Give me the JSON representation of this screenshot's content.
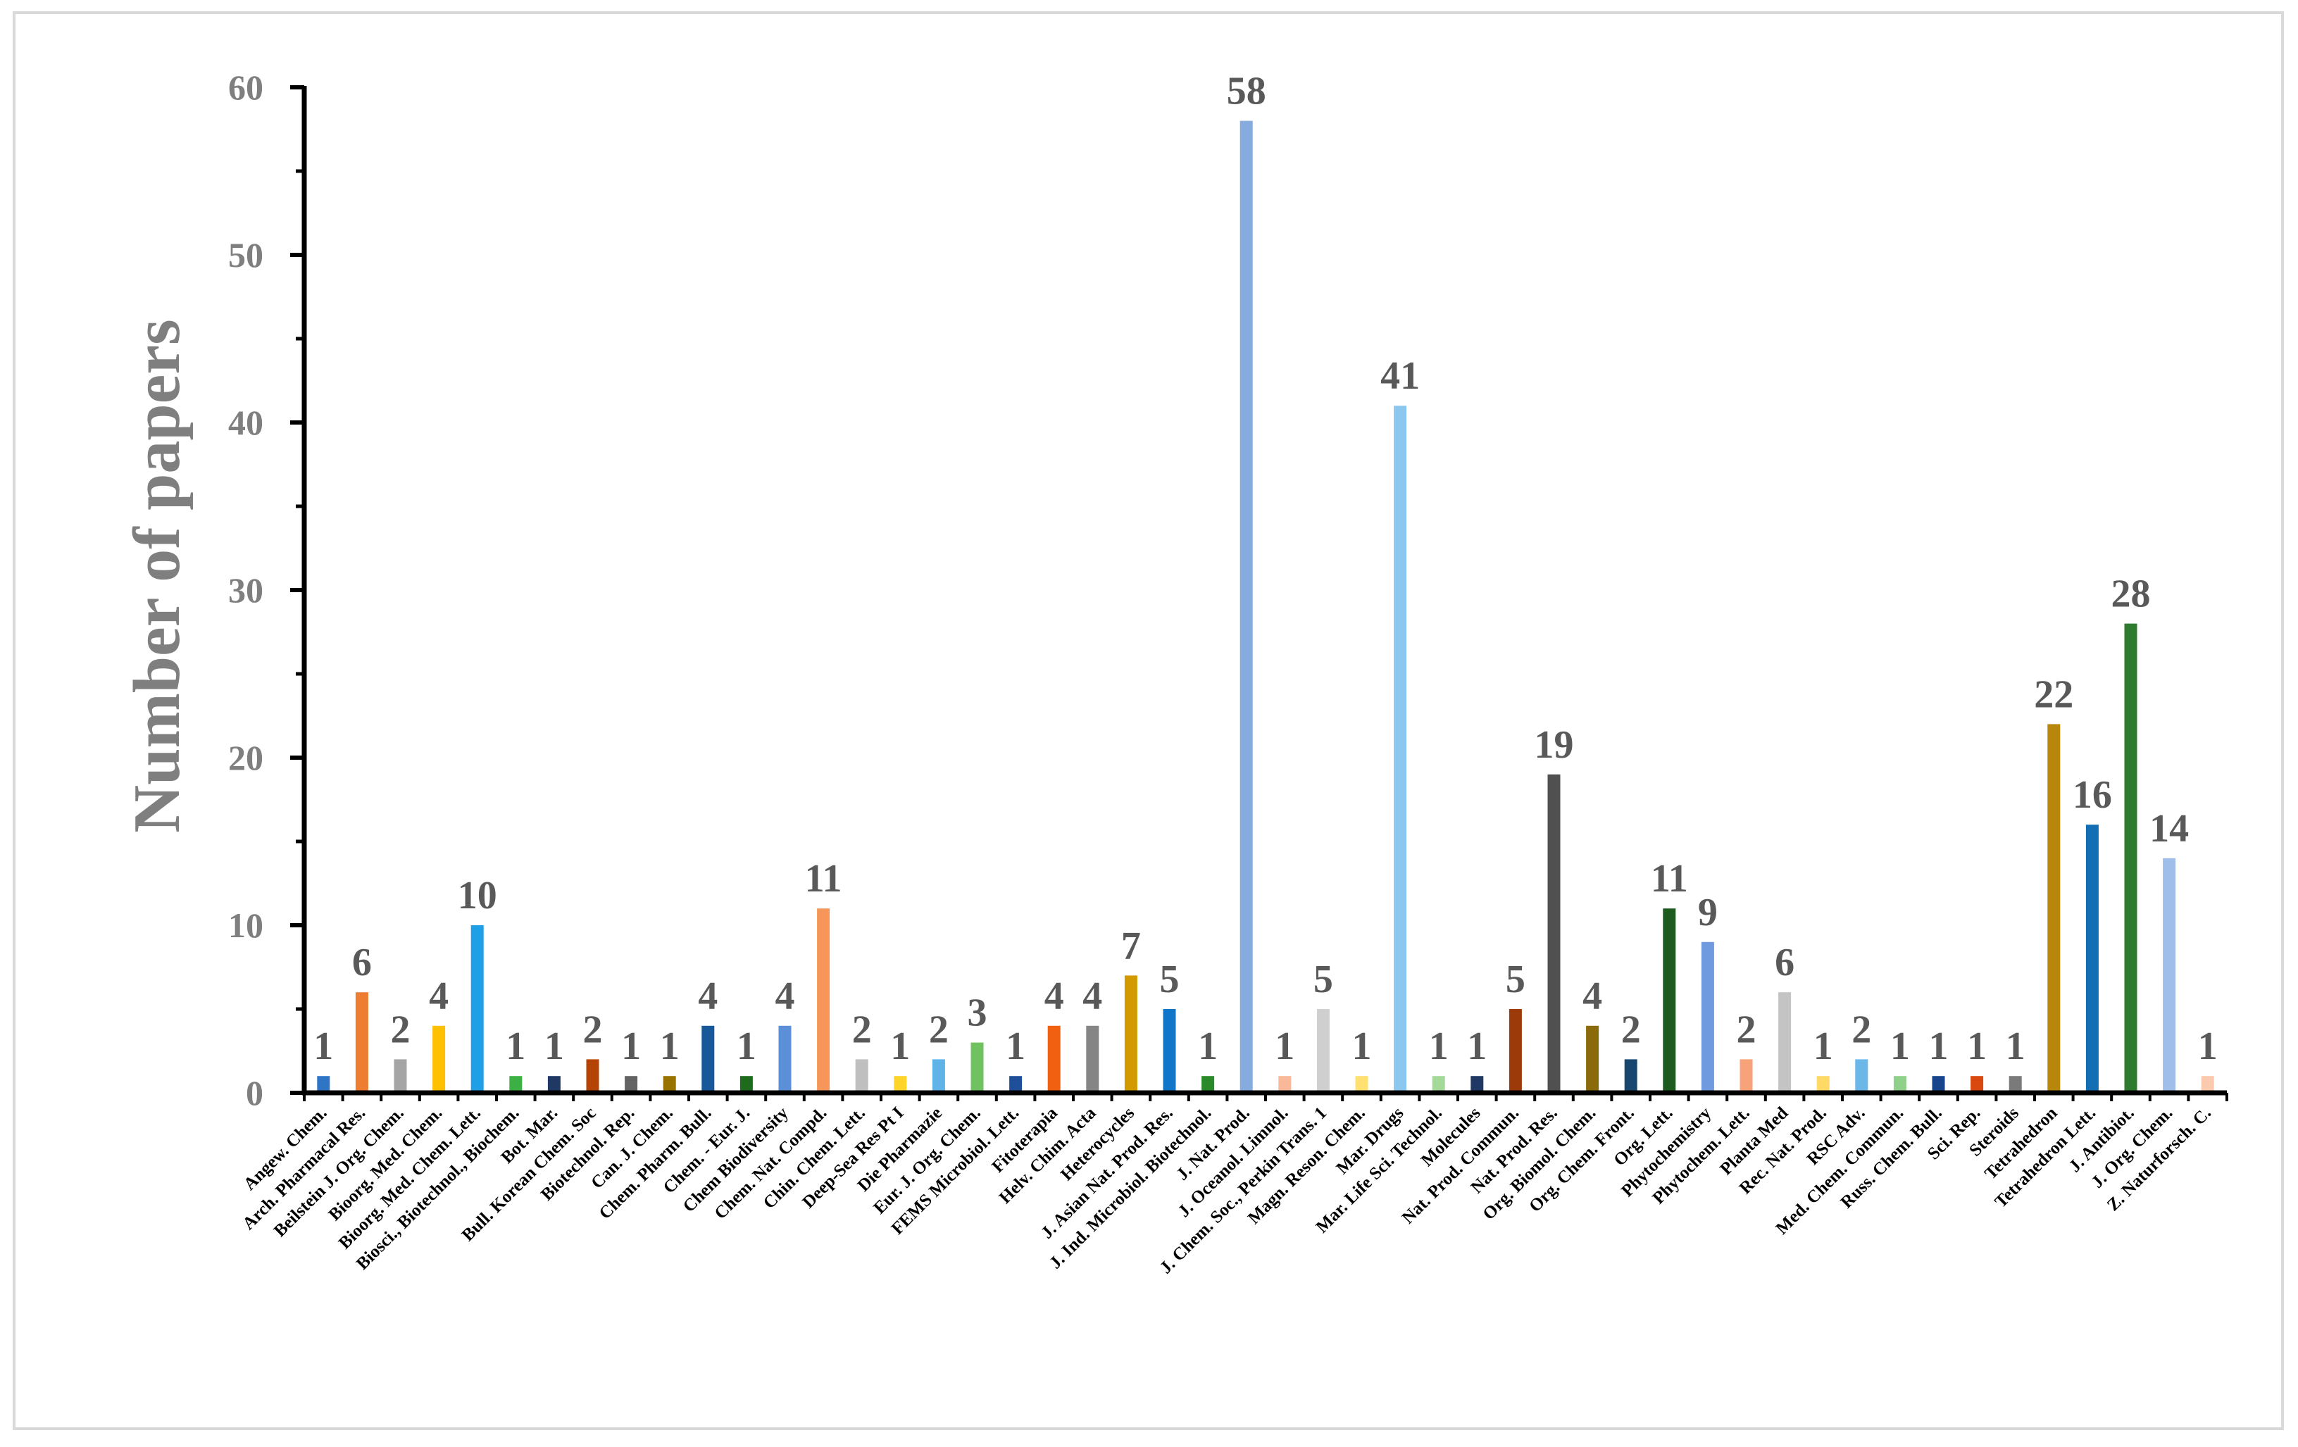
{
  "chart_data": {
    "type": "bar",
    "title": "",
    "xlabel": "",
    "ylabel": "Number of papers",
    "ylim": [
      0,
      60
    ],
    "yticks": [
      0,
      10,
      20,
      30,
      40,
      50,
      60
    ],
    "grid": false,
    "categories": [
      "Angew. Chem.",
      "Arch. Pharmacal Res.",
      "Beilstein J. Org. Chem.",
      "Bioorg. Med. Chem.",
      "Bioorg. Med. Chem. Lett.",
      "Biosci., Biotechnol., Biochem.",
      "Bot. Mar.",
      "Bull. Korean Chem. Soc",
      "Biotechnol. Rep.",
      "Can. J. Chem.",
      "Chem. Pharm. Bull.",
      "Chem. - Eur. J.",
      "Chem Biodiversity",
      "Chem. Nat. Compd.",
      "Chin. Chem. Lett.",
      "Deep-Sea Res Pt I",
      "Die Pharmazie",
      "Eur. J. Org. Chem.",
      "FEMS Microbiol. Lett.",
      "Fitoterapia",
      "Helv. Chim. Acta",
      "Heterocycles",
      "J. Asian Nat. Prod. Res.",
      "J. Ind. Microbiol. Biotechnol.",
      "J. Nat. Prod.",
      "J. Oceanol. Limnol.",
      "J. Chem. Soc., Perkin Trans. 1",
      "Magn. Reson. Chem.",
      "Mar. Drugs",
      "Mar. Life Sci. Technol.",
      "Molecules",
      "Nat. Prod. Commun.",
      "Nat. Prod. Res.",
      "Org. Biomol. Chem.",
      "Org. Chem. Front.",
      "Org. Lett.",
      "Phytochemistry",
      "Phytochem. Lett.",
      "Planta Med",
      "Rec. Nat. Prod.",
      "RSC Adv.",
      "Med. Chem. Commun.",
      "Russ. Chem. Bull.",
      "Sci. Rep.",
      "Steroids",
      "Tetrahedron",
      "Tetrahedron Lett.",
      "J. Antibiot.",
      "J. Org. Chem.",
      "Z. Naturforsch. C."
    ],
    "values": [
      1,
      6,
      2,
      4,
      10,
      1,
      1,
      2,
      1,
      1,
      4,
      1,
      4,
      11,
      2,
      1,
      2,
      3,
      1,
      4,
      4,
      7,
      5,
      1,
      58,
      1,
      5,
      1,
      41,
      1,
      1,
      5,
      19,
      4,
      2,
      11,
      9,
      2,
      6,
      1,
      2,
      1,
      1,
      1,
      1,
      22,
      16,
      28,
      14,
      1
    ],
    "data_labels": [
      "1",
      "6",
      "2",
      "4",
      "10",
      "1",
      "1",
      "2",
      "1",
      "1",
      "4",
      "1",
      "4",
      "11",
      "2",
      "1",
      "2",
      "3",
      "1",
      "4",
      "4",
      "7",
      "5",
      "1",
      "58",
      "1",
      "5",
      "1",
      "41",
      "1",
      "1",
      "5",
      "19",
      "4",
      "2",
      "11",
      "9",
      "2",
      "6",
      "1",
      "2",
      "1",
      "1",
      "1",
      "1",
      "22",
      "16",
      "28",
      "14",
      "1"
    ],
    "colors": [
      "#2f75c6",
      "#ed7d31",
      "#a5a5a5",
      "#ffc000",
      "#1fa0e6",
      "#3cb043",
      "#1f3864",
      "#b54305",
      "#636363",
      "#997300",
      "#17589a",
      "#1e6b1e",
      "#5b8fd8",
      "#f7965a",
      "#bfbfbf",
      "#ffd42a",
      "#5fb3e6",
      "#70c160",
      "#1f4e9a",
      "#f06010",
      "#858585",
      "#d29a00",
      "#1176c8",
      "#2a8a2a",
      "#85abdf",
      "#f9b89a",
      "#cfcfcf",
      "#ffe071",
      "#8cc7ef",
      "#a5d99a",
      "#1f3864",
      "#9c3a0a",
      "#505050",
      "#8a6a0a",
      "#17476e",
      "#1e5b1e",
      "#6f9ae0",
      "#f8a27a",
      "#c4c4c4",
      "#ffd966",
      "#6ab7e8",
      "#8fd18a",
      "#17448a",
      "#d9480f",
      "#7a7a7a",
      "#b8860b",
      "#146eb4",
      "#2e7a2e",
      "#9fbfea",
      "#fbc9ae"
    ]
  }
}
